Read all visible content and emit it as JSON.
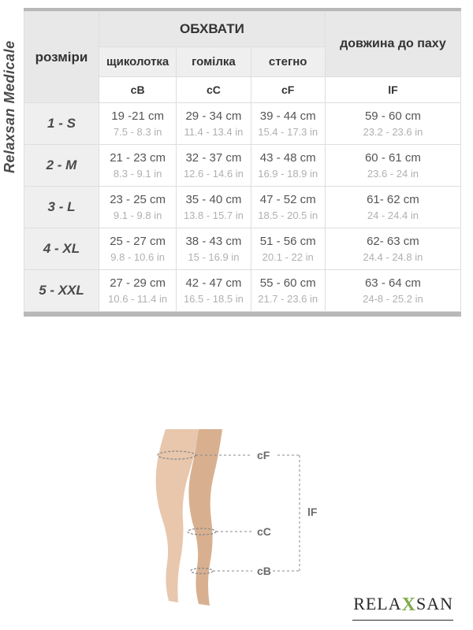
{
  "brand_side": "Relaxsan Medicale",
  "logo": {
    "left": "RELA",
    "x": "X",
    "right": "SAN"
  },
  "headers": {
    "sizes": "розміри",
    "girths": "ОБХВАТИ",
    "length": "довжина до паху",
    "ankle": "щиколотка",
    "calf": "гомілка",
    "thigh": "стегно",
    "codes": {
      "ankle": "cB",
      "calf": "cC",
      "thigh": "cF",
      "length": "lF"
    }
  },
  "rows": [
    {
      "size": "1 - S",
      "ankle_cm": "19 -21 cm",
      "ankle_in": "7.5 - 8.3 in",
      "calf_cm": "29 - 34 cm",
      "calf_in": "11.4 - 13.4 in",
      "thigh_cm": "39 - 44 cm",
      "thigh_in": "15.4 - 17.3 in",
      "len_cm": "59 - 60 cm",
      "len_in": "23.2 - 23.6 in"
    },
    {
      "size": "2 - M",
      "ankle_cm": "21 - 23 cm",
      "ankle_in": "8.3 - 9.1 in",
      "calf_cm": "32 - 37 cm",
      "calf_in": "12.6 - 14.6 in",
      "thigh_cm": "43 - 48 cm",
      "thigh_in": "16.9 - 18.9 in",
      "len_cm": "60 - 61 cm",
      "len_in": "23.6 - 24 in"
    },
    {
      "size": "3 - L",
      "ankle_cm": "23 - 25 cm",
      "ankle_in": "9.1 - 9.8 in",
      "calf_cm": "35 - 40 cm",
      "calf_in": "13.8 - 15.7 in",
      "thigh_cm": "47 - 52 cm",
      "thigh_in": "18.5 - 20.5 in",
      "len_cm": "61- 62 cm",
      "len_in": "24 - 24.4 in"
    },
    {
      "size": "4 - XL",
      "ankle_cm": "25 - 27 cm",
      "ankle_in": "9.8 - 10.6 in",
      "calf_cm": "38 - 43 cm",
      "calf_in": "15 - 16.9 in",
      "thigh_cm": "51 - 56 cm",
      "thigh_in": "20.1 - 22 in",
      "len_cm": "62- 63 cm",
      "len_in": "24.4 - 24.8 in"
    },
    {
      "size": "5 - XXL",
      "ankle_cm": "27 - 29 cm",
      "ankle_in": "10.6 - 11.4 in",
      "calf_cm": "42 - 47 cm",
      "calf_in": "16.5 - 18.5 in",
      "thigh_cm": "55 - 60 cm",
      "thigh_in": "21.7 - 23.6 in",
      "len_cm": "63 - 64 cm",
      "len_in": "24-8 - 25.2 in"
    }
  ],
  "diagram": {
    "labels": {
      "cF": "cF",
      "cC": "cC",
      "cB": "cB",
      "lF": "lF"
    },
    "leg_fill": "#e8c7ad",
    "leg_shadow": "#d8b090",
    "guide_color": "#888888",
    "label_color": "#6a6a6a",
    "label_fontsize": 14
  },
  "table_style": {
    "border_color": "#dedede",
    "header_bg": "#e8e8e8",
    "subheader_bg": "#efefef",
    "cell_bg": "#ffffff",
    "size_text_color": "#4a4a4a",
    "cm_text_color": "#555555",
    "in_text_color": "#b0b0b0",
    "rule_color": "#b8b8b8",
    "header_fontsize": 16,
    "sub_fontsize": 15,
    "code_fontsize": 14
  }
}
